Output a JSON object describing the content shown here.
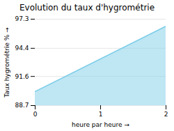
{
  "chart_data": {
    "type": "area",
    "title": "Evolution du taux d'hygrométrie",
    "xlabel": "heure par heure",
    "ylabel": "Taux hygrométrie %",
    "x": [
      0,
      2
    ],
    "values": [
      90.1,
      96.6
    ],
    "color": "#7ecde8",
    "xlim": [
      0,
      2
    ],
    "xticks": [
      0,
      1,
      2
    ],
    "ylim": [
      88.7,
      97.3
    ],
    "yticks": [
      88.7,
      91.6,
      94.4,
      97.3
    ],
    "grid": true
  }
}
